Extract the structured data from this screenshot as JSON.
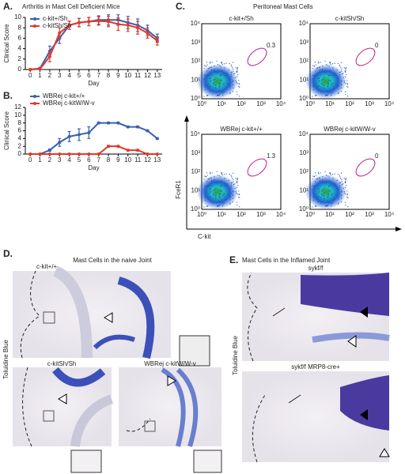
{
  "chart_data": [
    {
      "type": "line",
      "panel": "A.",
      "title": "Arthritis in Mast Cell Deficient Mice",
      "x_label": "Day",
      "y_label": "Clinical Score",
      "x": [
        0,
        1,
        2,
        3,
        4,
        5,
        6,
        7,
        8,
        9,
        10,
        11,
        12,
        13
      ],
      "xlim": [
        -0.5,
        13.5
      ],
      "xticks": [
        0,
        1,
        2,
        3,
        4,
        5,
        6,
        7,
        8,
        9,
        10,
        11,
        12,
        13
      ],
      "ylim": [
        0,
        10
      ],
      "yticks": [
        0,
        2,
        4,
        6,
        8,
        10
      ],
      "legend": "upper left",
      "series": [
        {
          "name": "c-kit+/Sh",
          "color": "#3a5fb0",
          "values": [
            0,
            0.2,
            3.5,
            6,
            8.5,
            9,
            9.2,
            9.5,
            9.5,
            9.5,
            9,
            8.5,
            7.5,
            6
          ],
          "errors": [
            0,
            0.2,
            1,
            1,
            0.8,
            0.8,
            0.8,
            0.8,
            1,
            1,
            1.2,
            1.2,
            1,
            0.8
          ]
        },
        {
          "name": "c-kitSh/Sh",
          "color": "#e03a2a",
          "values": [
            0,
            0.1,
            2.5,
            7,
            8.5,
            9,
            9.2,
            9.3,
            9.2,
            8.7,
            8.5,
            8,
            7,
            5.5
          ],
          "errors": [
            0,
            0.1,
            1,
            1,
            0.8,
            0.8,
            0.8,
            0.8,
            1,
            1.2,
            1.2,
            1.2,
            1,
            0.8
          ]
        }
      ]
    },
    {
      "type": "line",
      "panel": "B.",
      "x_label": "Day",
      "y_label": "Clinical Score",
      "x": [
        0,
        1,
        2,
        3,
        4,
        5,
        6,
        7,
        8,
        9,
        10,
        11,
        12,
        13
      ],
      "xlim": [
        -0.5,
        13.5
      ],
      "xticks": [
        0,
        1,
        2,
        3,
        4,
        5,
        6,
        7,
        8,
        9,
        10,
        11,
        12,
        13
      ],
      "ylim": [
        0,
        12
      ],
      "yticks": [
        0,
        2,
        4,
        6,
        8,
        10,
        12
      ],
      "legend": "upper left",
      "series": [
        {
          "name": "WBRej c-kit+/+",
          "color": "#3a5fb0",
          "values": [
            0,
            0,
            1,
            3,
            4.5,
            5,
            5.5,
            8,
            8,
            8,
            7,
            7,
            6,
            4
          ],
          "errors": [
            0,
            0,
            0.3,
            1,
            1.3,
            1.5,
            1.5,
            0.2,
            0.2,
            0.2,
            0.2,
            0.2,
            0.2,
            0.2
          ]
        },
        {
          "name": "WBRej c-kitW/W-v",
          "color": "#e03a2a",
          "values": [
            0,
            0,
            0,
            0,
            0,
            0,
            0,
            0,
            2,
            2,
            1,
            1,
            0,
            0
          ],
          "errors": [
            0,
            0,
            0,
            0,
            0,
            0,
            0,
            0,
            0.2,
            0.2,
            0.2,
            0.2,
            0,
            0
          ]
        }
      ]
    }
  ],
  "panel_c": {
    "label": "C.",
    "title": "Peritoneal Mast Cells",
    "y_label": "FceR1",
    "x_label": "C-kit",
    "ticks": [
      "10⁰",
      "10¹",
      "10²",
      "10³",
      "10⁴"
    ],
    "plots": [
      {
        "name": "c-kit+/Sh",
        "gate": 0.3
      },
      {
        "name": "c-kitSh/Sh",
        "gate": 0
      },
      {
        "name": "WBRej c-kit+/+",
        "gate": 1.3
      },
      {
        "name": "WBRej c-kitW/W-v",
        "gate": 0
      }
    ]
  },
  "panel_d": {
    "label": "D.",
    "title": "Mast Cells in the naive Joint",
    "stain": "Toluidine Blue",
    "images": [
      "c-kit+/+",
      "c-kitSh/Sh",
      "WBRej c-kitW/W-v"
    ]
  },
  "panel_e": {
    "label": "E.",
    "title": "Mast Cells in the Inflamed Joint",
    "stain": "Toluidine Blue",
    "images": [
      "sykf/f",
      "sykf/f MRP8-cre+"
    ]
  }
}
